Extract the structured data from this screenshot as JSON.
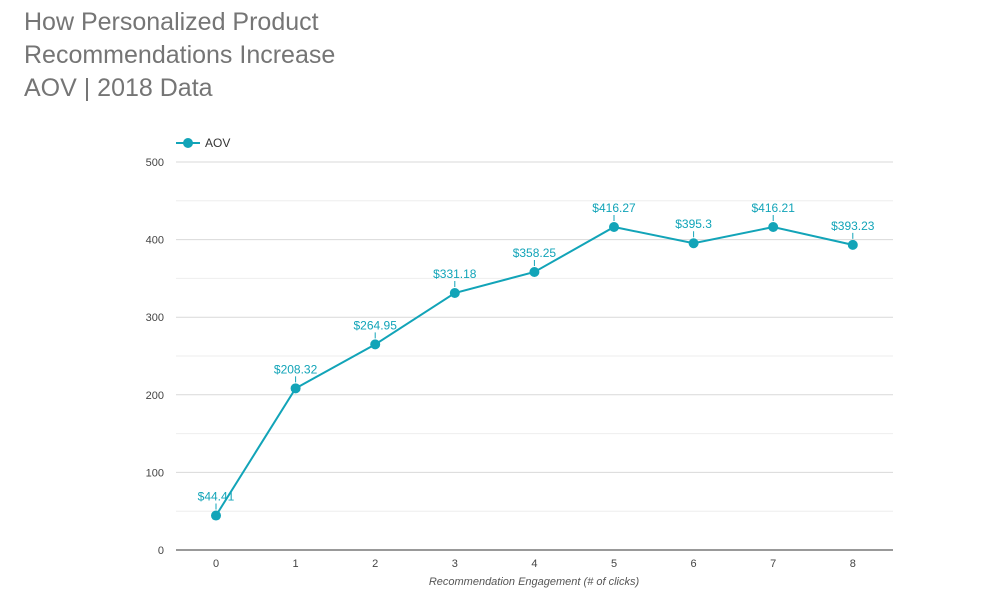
{
  "title_lines": [
    "How Personalized Product",
    "Recommendations Increase",
    "AOV | 2018 Data"
  ],
  "chart_data": {
    "type": "line",
    "title": "How Personalized Product Recommendations Increase AOV | 2018 Data",
    "xlabel": "Recommendation Engagement (# of clicks)",
    "ylabel": "",
    "x": [
      0,
      1,
      2,
      3,
      4,
      5,
      6,
      7,
      8
    ],
    "x_tick_labels": [
      "0",
      "1",
      "2",
      "3",
      "4",
      "5",
      "6",
      "7",
      "8"
    ],
    "y_tick_labels": [
      "0",
      "100",
      "200",
      "300",
      "400",
      "500"
    ],
    "ylim": [
      0,
      500
    ],
    "y_ticks": [
      0,
      100,
      200,
      300,
      400,
      500
    ],
    "grid": true,
    "legend_position": "top-left",
    "series": [
      {
        "name": "AOV",
        "color": "#12a4b8",
        "values": [
          44.41,
          208.32,
          264.95,
          331.18,
          358.25,
          416.27,
          395.3,
          416.21,
          393.23
        ],
        "data_labels": [
          "$44.41",
          "$208.32",
          "$264.95",
          "$331.18",
          "$358.25",
          "$416.27",
          "$395.3",
          "$416.21",
          "$393.23"
        ]
      }
    ]
  }
}
